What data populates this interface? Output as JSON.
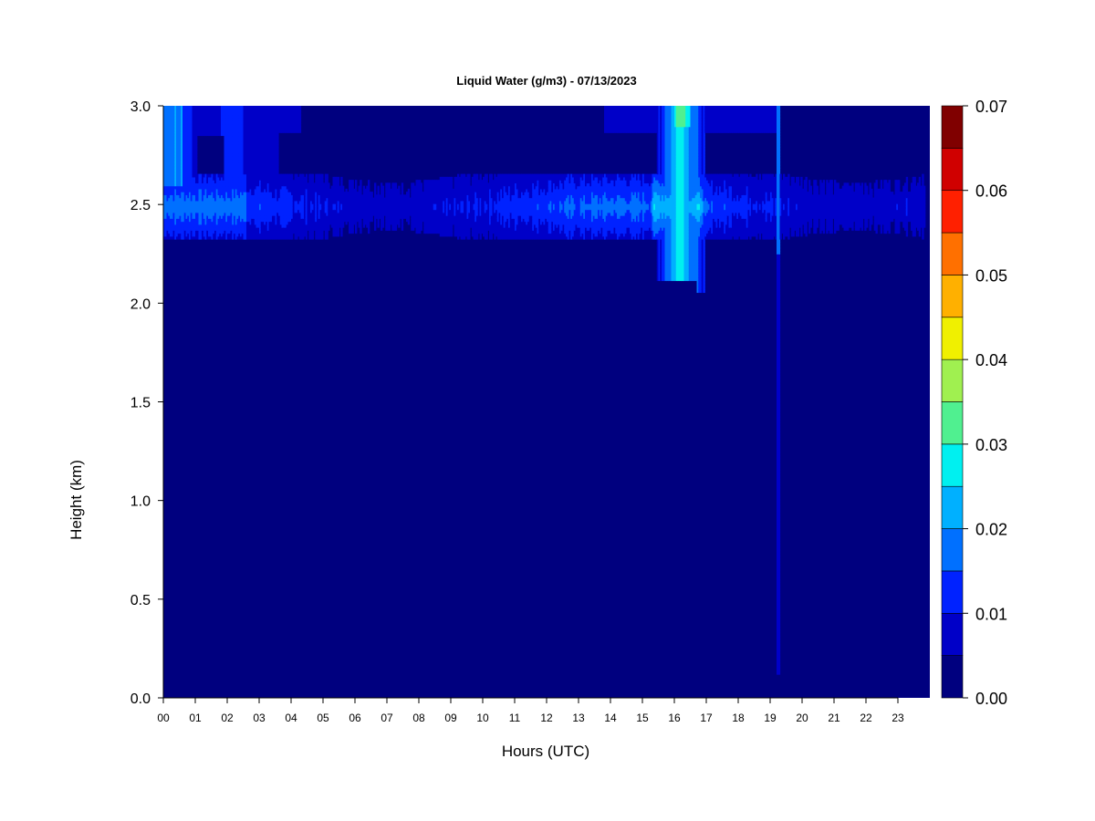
{
  "chart_data": {
    "type": "heatmap",
    "title": "Liquid Water (g/m3) - 07/13/2023",
    "xlabel": "Hours (UTC)",
    "ylabel": "Height (km)",
    "x_ticks": [
      "00",
      "01",
      "02",
      "03",
      "04",
      "05",
      "06",
      "07",
      "08",
      "09",
      "10",
      "11",
      "12",
      "13",
      "14",
      "15",
      "16",
      "17",
      "18",
      "19",
      "20",
      "21",
      "22",
      "23"
    ],
    "xlim": [
      0,
      24
    ],
    "y_ticks": [
      "0.0",
      "0.5",
      "1.0",
      "1.5",
      "2.0",
      "2.5",
      "3.0"
    ],
    "ylim": [
      0,
      3.0
    ],
    "colorbar": {
      "ticks": [
        "0.00",
        "0.01",
        "0.02",
        "0.03",
        "0.04",
        "0.05",
        "0.06",
        "0.07"
      ],
      "range": [
        0,
        0.07
      ],
      "levels": [
        {
          "from": 0.0,
          "to": 0.005,
          "color": "#00007f"
        },
        {
          "from": 0.005,
          "to": 0.01,
          "color": "#0000c8"
        },
        {
          "from": 0.01,
          "to": 0.015,
          "color": "#0022ff"
        },
        {
          "from": 0.015,
          "to": 0.02,
          "color": "#0070ff"
        },
        {
          "from": 0.02,
          "to": 0.025,
          "color": "#00b0ff"
        },
        {
          "from": 0.025,
          "to": 0.03,
          "color": "#00f0f0"
        },
        {
          "from": 0.03,
          "to": 0.035,
          "color": "#50f090"
        },
        {
          "from": 0.035,
          "to": 0.04,
          "color": "#a0f050"
        },
        {
          "from": 0.04,
          "to": 0.045,
          "color": "#f0f000"
        },
        {
          "from": 0.045,
          "to": 0.05,
          "color": "#ffb000"
        },
        {
          "from": 0.05,
          "to": 0.055,
          "color": "#ff7000"
        },
        {
          "from": 0.055,
          "to": 0.06,
          "color": "#ff2000"
        },
        {
          "from": 0.06,
          "to": 0.065,
          "color": "#d00000"
        },
        {
          "from": 0.065,
          "to": 0.07,
          "color": "#800000"
        }
      ]
    },
    "features": [
      {
        "description": "cloud layer",
        "x_range": [
          0,
          23.85
        ],
        "y_range": [
          2.3,
          2.68
        ],
        "peak_value": 0.02
      },
      {
        "description": "upper cloud",
        "x_range": [
          0,
          4.3
        ],
        "y_range": [
          2.6,
          3.0
        ],
        "peak_value": 0.025
      },
      {
        "description": "upper cloud",
        "x_range": [
          14,
          19
        ],
        "y_range": [
          2.85,
          3.0
        ],
        "peak_value": 0.01
      },
      {
        "description": "deep cloud",
        "x_range": [
          15.5,
          16.9
        ],
        "y_range": [
          2.05,
          3.0
        ],
        "peak_value": 0.03
      },
      {
        "description": "thin column",
        "x_range": [
          19.2,
          19.3
        ],
        "y_range": [
          0.1,
          3.0
        ],
        "peak_value": 0.02
      }
    ]
  }
}
